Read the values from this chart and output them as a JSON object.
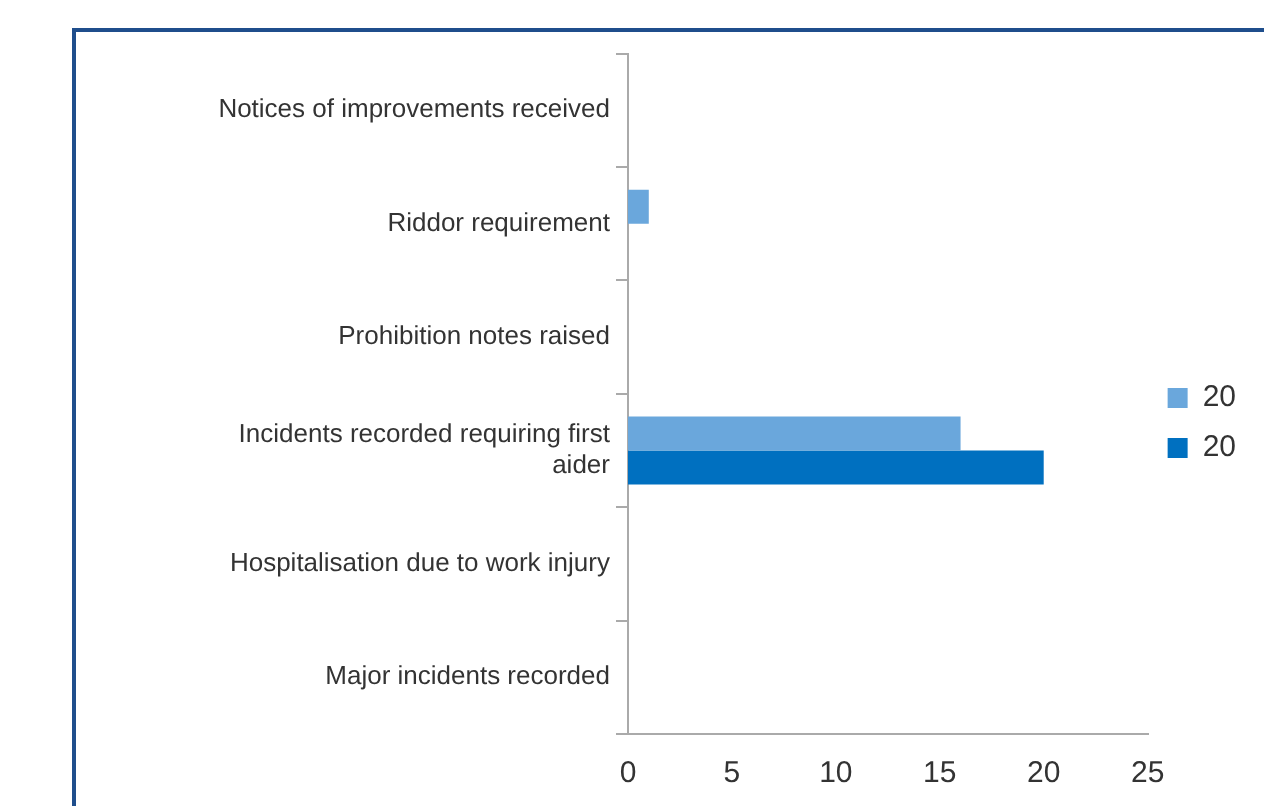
{
  "chart_data": {
    "type": "bar",
    "orientation": "horizontal",
    "categories": [
      "Notices of improvements received",
      "Riddor requirement",
      "Prohibition notes raised",
      "Incidents recorded requiring first aider",
      "Hospitalisation due to work injury",
      "Major incidents recorded"
    ],
    "series": [
      {
        "name": "20",
        "color": "#6aa7dc",
        "values": [
          0,
          1,
          0,
          16,
          0,
          0
        ]
      },
      {
        "name": "20",
        "color": "#0070c0",
        "values": [
          0,
          0,
          0,
          20,
          0,
          0
        ]
      }
    ],
    "xlim": [
      0,
      25
    ],
    "xticks": [
      0,
      5,
      10,
      15,
      20,
      25
    ],
    "grid": false,
    "legend": "right"
  }
}
